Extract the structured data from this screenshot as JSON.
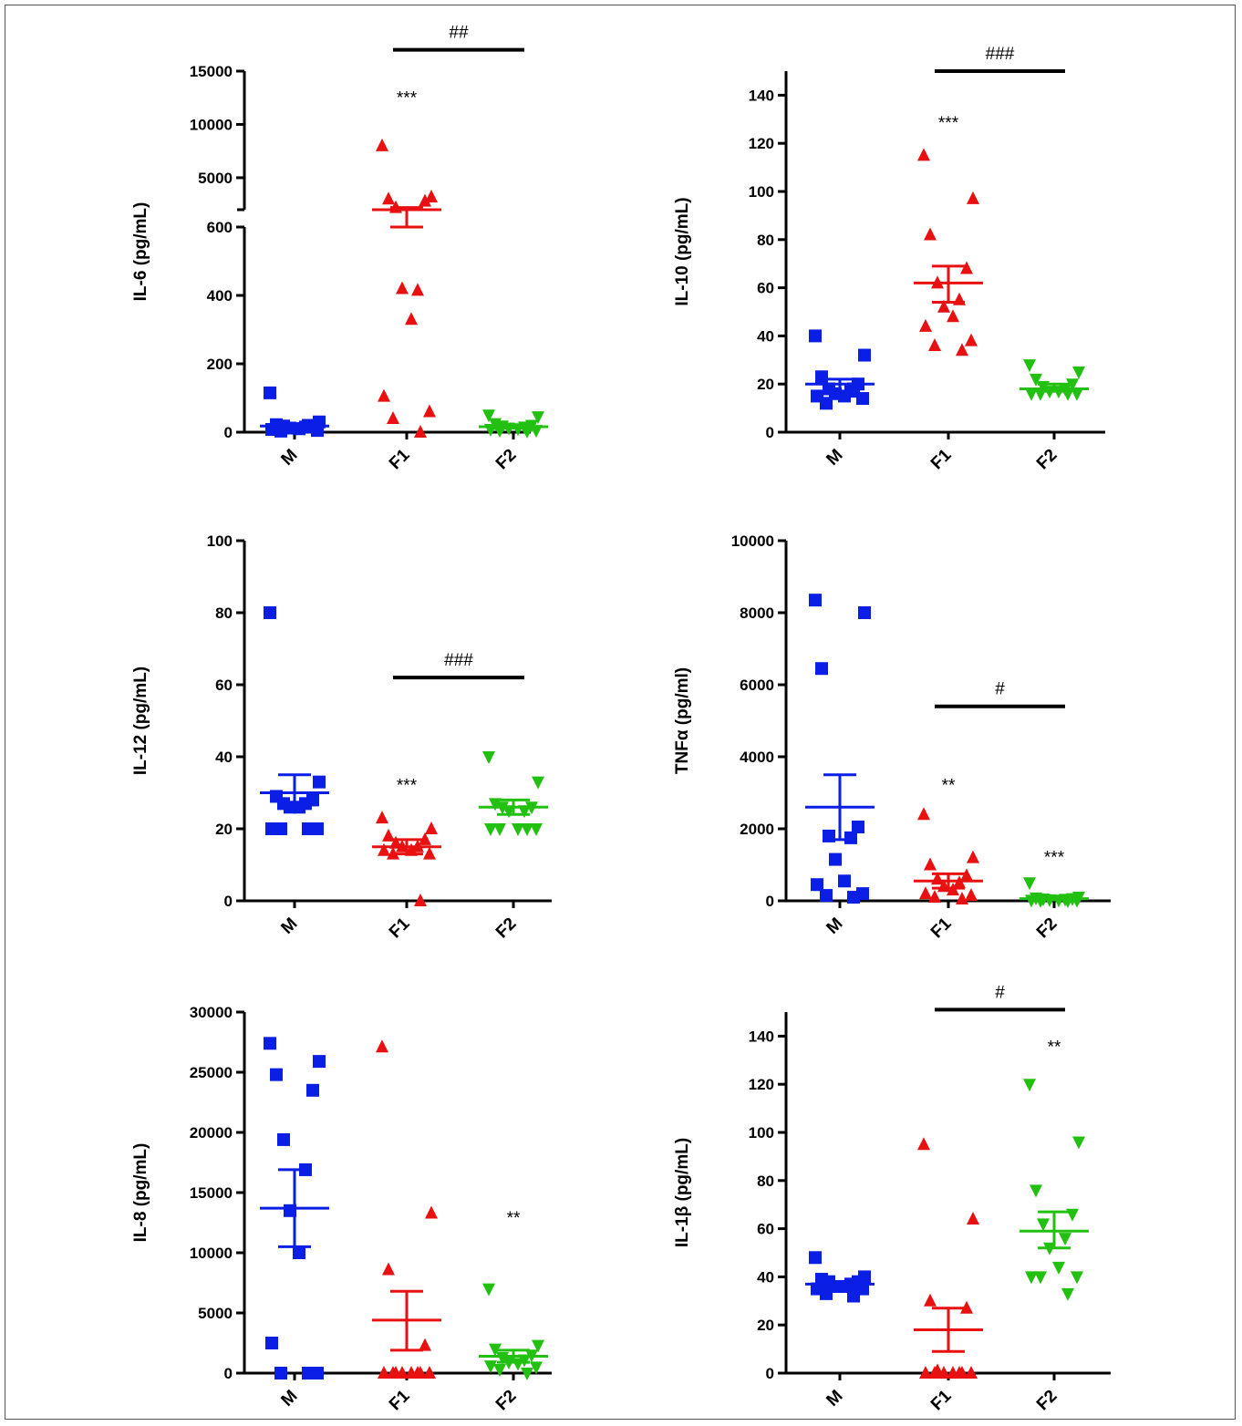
{
  "chart_data": [
    {
      "type": "scatter",
      "ylabel": "IL-6 (pg/mL)",
      "categories": [
        "M",
        "F1",
        "F2"
      ],
      "y_axis": "broken",
      "lower_ticks": [
        0,
        200,
        400,
        600
      ],
      "upper_ticks": [
        5000,
        10000,
        15000
      ],
      "series": [
        {
          "name": "M",
          "color": "#0a1ee6",
          "marker": "square",
          "values": [
            115,
            30,
            22,
            20,
            18,
            15,
            12,
            10,
            8,
            5,
            3,
            20
          ],
          "mean": 18,
          "sem_low": 12,
          "sem_high": 25
        },
        {
          "name": "F1",
          "color": "#e81010",
          "marker": "triangle-up",
          "values": [
            8000,
            3200,
            3000,
            2800,
            2200,
            415,
            420,
            330,
            105,
            60,
            40,
            0
          ],
          "mean": 1700,
          "sem_low": 600,
          "sem_high": 2200
        },
        {
          "name": "F2",
          "color": "#22c010",
          "marker": "triangle-down",
          "values": [
            50,
            45,
            25,
            20,
            18,
            15,
            12,
            10,
            8,
            5,
            5,
            3
          ],
          "mean": 16,
          "sem_low": 12,
          "sem_high": 20
        }
      ],
      "annotations": [
        {
          "text": "***",
          "category": "F1",
          "y": 12800
        },
        {
          "text": "##",
          "from": "F1",
          "to": "F2",
          "y": 17000
        }
      ]
    },
    {
      "type": "scatter",
      "ylabel": "IL-10 (pg/mL)",
      "categories": [
        "M",
        "F1",
        "F2"
      ],
      "ylim": [
        0,
        150
      ],
      "ticks": [
        0,
        20,
        40,
        60,
        80,
        100,
        120,
        140
      ],
      "series": [
        {
          "name": "M",
          "color": "#0a1ee6",
          "marker": "square",
          "values": [
            40,
            32,
            23,
            20,
            18,
            17,
            16,
            15,
            15,
            14,
            12,
            18
          ],
          "mean": 20,
          "sem_low": 17,
          "sem_high": 22
        },
        {
          "name": "F1",
          "color": "#e81010",
          "marker": "triangle-up",
          "values": [
            115,
            97,
            82,
            68,
            62,
            55,
            52,
            48,
            44,
            38,
            36,
            34
          ],
          "mean": 62,
          "sem_low": 54,
          "sem_high": 69
        },
        {
          "name": "F2",
          "color": "#22c010",
          "marker": "triangle-down",
          "values": [
            28,
            25,
            22,
            20,
            19,
            18,
            17,
            17,
            16,
            16,
            16,
            16
          ],
          "mean": 18,
          "sem_low": 17,
          "sem_high": 20
        }
      ],
      "annotations": [
        {
          "text": "***",
          "category": "F1",
          "y": 130
        },
        {
          "text": "###",
          "from": "F1",
          "to": "F2",
          "y": 150
        }
      ]
    },
    {
      "type": "scatter",
      "ylabel": "IL-12 (pg/mL)",
      "categories": [
        "M",
        "F1",
        "F2"
      ],
      "ylim": [
        0,
        100
      ],
      "ticks": [
        0,
        20,
        40,
        60,
        80,
        100
      ],
      "series": [
        {
          "name": "M",
          "color": "#0a1ee6",
          "marker": "square",
          "values": [
            80,
            33,
            29,
            28,
            27,
            27,
            26,
            26,
            20,
            20,
            20,
            20
          ],
          "mean": 30,
          "sem_low": 26,
          "sem_high": 35
        },
        {
          "name": "F1",
          "color": "#e81010",
          "marker": "triangle-up",
          "values": [
            23,
            20,
            18,
            17,
            16,
            15,
            15,
            14,
            14,
            13,
            13,
            0
          ],
          "mean": 15,
          "sem_low": 13,
          "sem_high": 17
        },
        {
          "name": "F2",
          "color": "#22c010",
          "marker": "triangle-down",
          "values": [
            40,
            33,
            27,
            26,
            26,
            25,
            25,
            20,
            20,
            20,
            20,
            20
          ],
          "mean": 26,
          "sem_low": 24,
          "sem_high": 28
        }
      ],
      "annotations": [
        {
          "text": "***",
          "category": "F1",
          "y": 33
        },
        {
          "text": "###",
          "from": "F1",
          "to": "F2",
          "y": 62
        }
      ]
    },
    {
      "type": "scatter",
      "ylabel": "TNFα (pg/ml)",
      "categories": [
        "M",
        "F1",
        "F2"
      ],
      "ylim": [
        0,
        10000
      ],
      "ticks": [
        0,
        2000,
        4000,
        6000,
        8000,
        10000
      ],
      "series": [
        {
          "name": "M",
          "color": "#0a1ee6",
          "marker": "square",
          "values": [
            8350,
            8000,
            6450,
            2050,
            1800,
            1750,
            1150,
            550,
            450,
            200,
            150,
            100
          ],
          "mean": 2600,
          "sem_low": 1700,
          "sem_high": 3500
        },
        {
          "name": "F1",
          "color": "#e81010",
          "marker": "triangle-up",
          "values": [
            2400,
            1200,
            1000,
            700,
            600,
            500,
            400,
            300,
            200,
            150,
            100,
            50
          ],
          "mean": 550,
          "sem_low": 350,
          "sem_high": 750
        },
        {
          "name": "F2",
          "color": "#22c010",
          "marker": "triangle-down",
          "values": [
            500,
            100,
            80,
            60,
            50,
            40,
            30,
            20,
            15,
            10,
            5,
            0
          ],
          "mean": 60,
          "sem_low": 30,
          "sem_high": 100
        }
      ],
      "annotations": [
        {
          "text": "**",
          "category": "F1",
          "y": 3300
        },
        {
          "text": "***",
          "category": "F2",
          "y": 1300
        },
        {
          "text": "#",
          "from": "F1",
          "to": "F2",
          "y": 5400
        }
      ]
    },
    {
      "type": "scatter",
      "ylabel": "IL-8 (pg/mL)",
      "categories": [
        "M",
        "F1",
        "F2"
      ],
      "ylim": [
        0,
        30000
      ],
      "ticks": [
        0,
        5000,
        10000,
        15000,
        20000,
        25000,
        30000
      ],
      "series": [
        {
          "name": "M",
          "color": "#0a1ee6",
          "marker": "square",
          "values": [
            27400,
            25900,
            24800,
            23500,
            19400,
            16900,
            13500,
            10000,
            2500,
            0,
            0,
            0
          ],
          "mean": 13700,
          "sem_low": 10500,
          "sem_high": 16900
        },
        {
          "name": "F1",
          "color": "#e81010",
          "marker": "triangle-up",
          "values": [
            27100,
            13300,
            8600,
            2300,
            0,
            0,
            0,
            0,
            0,
            0,
            0,
            0
          ],
          "mean": 4400,
          "sem_low": 1900,
          "sem_high": 6800
        },
        {
          "name": "F2",
          "color": "#22c010",
          "marker": "triangle-down",
          "values": [
            7000,
            2300,
            2000,
            1500,
            1300,
            1100,
            900,
            800,
            600,
            500,
            300,
            0
          ],
          "mean": 1400,
          "sem_low": 900,
          "sem_high": 1900
        }
      ],
      "annotations": [
        {
          "text": "**",
          "category": "F2",
          "y": 13200
        }
      ]
    },
    {
      "type": "scatter",
      "ylabel": "IL-1β (pg/mL)",
      "categories": [
        "M",
        "F1",
        "F2"
      ],
      "ylim": [
        0,
        150
      ],
      "ticks": [
        0,
        20,
        40,
        60,
        80,
        100,
        120,
        140
      ],
      "series": [
        {
          "name": "M",
          "color": "#0a1ee6",
          "marker": "square",
          "values": [
            48,
            40,
            39,
            38,
            38,
            37,
            36,
            36,
            35,
            35,
            33,
            32
          ],
          "mean": 37,
          "sem_low": 36,
          "sem_high": 38
        },
        {
          "name": "F1",
          "color": "#e81010",
          "marker": "triangle-up",
          "values": [
            95,
            64,
            30,
            27,
            1,
            0,
            0,
            0,
            0,
            0,
            0,
            0
          ],
          "mean": 18,
          "sem_low": 9,
          "sem_high": 27
        },
        {
          "name": "F2",
          "color": "#22c010",
          "marker": "triangle-down",
          "values": [
            120,
            96,
            76,
            66,
            62,
            56,
            52,
            44,
            40,
            40,
            40,
            33
          ],
          "mean": 59,
          "sem_low": 52,
          "sem_high": 67
        }
      ],
      "annotations": [
        {
          "text": "**",
          "category": "F2",
          "y": 137
        },
        {
          "text": "#",
          "from": "F1",
          "to": "F2",
          "y": 151
        }
      ]
    }
  ]
}
